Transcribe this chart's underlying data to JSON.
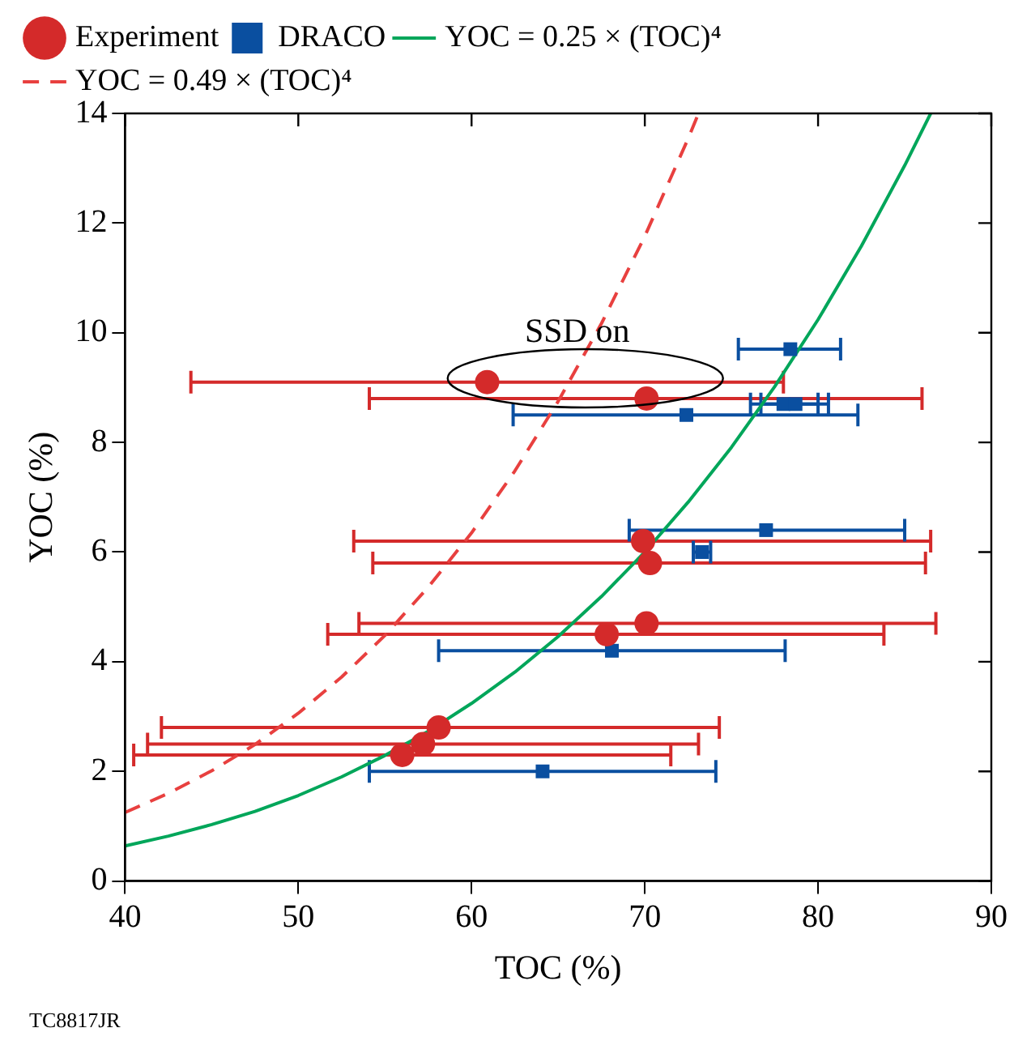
{
  "chart_data": {
    "type": "scatter",
    "xlabel": "TOC (%)",
    "ylabel": "YOC (%)",
    "xlim": [
      40,
      90
    ],
    "xticks": [
      40,
      50,
      60,
      70,
      80,
      90
    ],
    "ylim": [
      0,
      14
    ],
    "yticks": [
      0,
      2,
      4,
      6,
      8,
      10,
      12,
      14
    ],
    "grid": false,
    "legend": "top left",
    "annotations": [
      "SSD on",
      "TC8817JR"
    ],
    "series": [
      {
        "name": "Experiment",
        "marker": "circle",
        "color": "#d42a2a",
        "x": [
          60.9,
          70.1,
          69.9,
          70.3,
          70.1,
          67.8,
          58.1,
          57.2,
          56.0
        ],
        "values": [
          9.1,
          8.8,
          6.2,
          5.8,
          4.7,
          4.5,
          2.8,
          2.5,
          2.3
        ],
        "xerrors": [
          [
            43.8,
            78.0
          ],
          [
            54.1,
            86.0
          ],
          [
            53.2,
            86.5
          ],
          [
            54.3,
            86.2
          ],
          [
            53.5,
            86.8
          ],
          [
            51.7,
            83.8
          ],
          [
            42.1,
            74.3
          ],
          [
            41.3,
            73.1
          ],
          [
            40.5,
            71.5
          ]
        ]
      },
      {
        "name": "DRACO",
        "marker": "square",
        "color": "#0a4fa0",
        "x": [
          78.4,
          78.0,
          78.7,
          72.4,
          77.0,
          73.3,
          68.1,
          64.1
        ],
        "values": [
          9.7,
          8.7,
          8.7,
          8.5,
          6.4,
          6.0,
          4.2,
          2.0
        ],
        "xerrors": [
          [
            75.4,
            81.3
          ],
          [
            76.1,
            80.0
          ],
          [
            76.7,
            80.6
          ],
          [
            62.4,
            82.3
          ],
          [
            69.1,
            85.0
          ],
          [
            72.8,
            73.8
          ],
          [
            58.1,
            78.1
          ],
          [
            54.1,
            74.1
          ]
        ]
      },
      {
        "name": "YOC = 0.25 × (TOC)⁴",
        "type": "line",
        "marker": "none",
        "line_style": "solid",
        "color": "#00a65a",
        "x": [
          40,
          42.5,
          45,
          47.5,
          50,
          52.5,
          55,
          57.5,
          60,
          62.5,
          65,
          67.5,
          70,
          72.5,
          75,
          77.5,
          80,
          82.5,
          85,
          86.5
        ],
        "values": [
          0.64,
          0.82,
          1.03,
          1.27,
          1.56,
          1.9,
          2.29,
          2.73,
          3.24,
          3.81,
          4.46,
          5.19,
          6.0,
          6.91,
          7.91,
          9.02,
          10.24,
          11.58,
          13.05,
          14.0
        ]
      },
      {
        "name": "YOC = 0.49 × (TOC)⁴",
        "type": "line",
        "marker": "none",
        "line_style": "dashed",
        "color": "#e8403f",
        "x": [
          40,
          42.5,
          45,
          47.5,
          50,
          52.5,
          55,
          57.5,
          60,
          62.5,
          65,
          67.5,
          70,
          72.5,
          73.1
        ],
        "values": [
          1.25,
          1.6,
          2.01,
          2.49,
          3.06,
          3.72,
          4.48,
          5.36,
          6.35,
          7.48,
          8.75,
          10.17,
          11.76,
          13.54,
          14.0
        ]
      }
    ]
  }
}
